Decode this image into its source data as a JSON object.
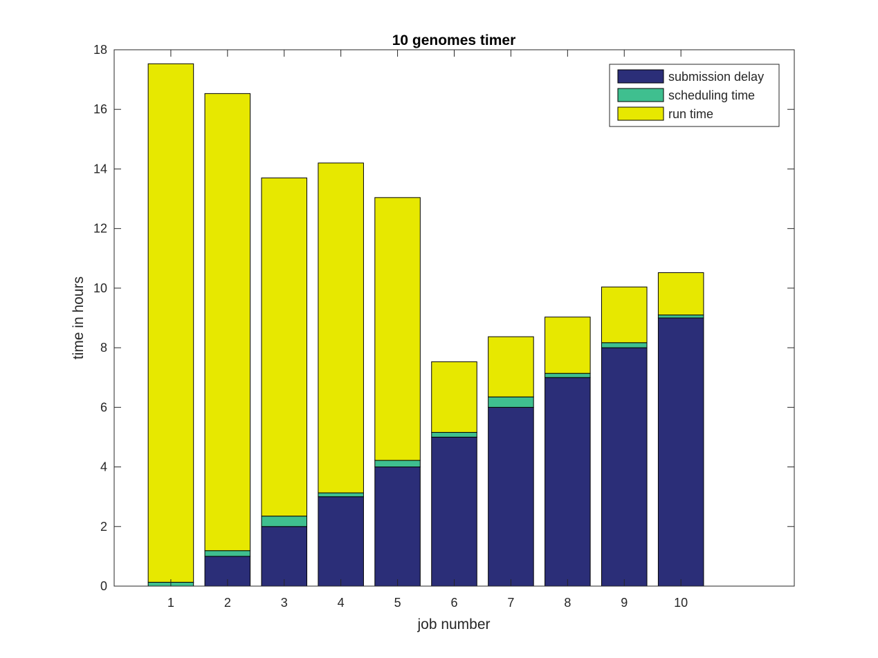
{
  "chart_data": {
    "type": "bar",
    "stacked": true,
    "title": "10 genomes timer",
    "xlabel": "job number",
    "ylabel": "time in hours",
    "categories": [
      "1",
      "2",
      "3",
      "4",
      "5",
      "6",
      "7",
      "8",
      "9",
      "10"
    ],
    "xlim": [
      0,
      12
    ],
    "ylim": [
      0,
      18
    ],
    "yticks": [
      "0",
      "2",
      "4",
      "6",
      "8",
      "10",
      "12",
      "14",
      "16",
      "18"
    ],
    "grid": false,
    "legend_position": "top-right",
    "series": [
      {
        "name": "submission delay",
        "color": "#2b2e78",
        "values": [
          0,
          1,
          2,
          3,
          4,
          5,
          6,
          7,
          8,
          9
        ]
      },
      {
        "name": "scheduling time",
        "color": "#3fbf8f",
        "values": [
          0.13,
          0.19,
          0.35,
          0.13,
          0.22,
          0.16,
          0.35,
          0.14,
          0.17,
          0.1
        ]
      },
      {
        "name": "run time",
        "color": "#e7e800",
        "values": [
          17.4,
          15.34,
          11.35,
          11.07,
          8.82,
          2.37,
          2.02,
          1.89,
          1.87,
          1.42
        ]
      }
    ]
  }
}
